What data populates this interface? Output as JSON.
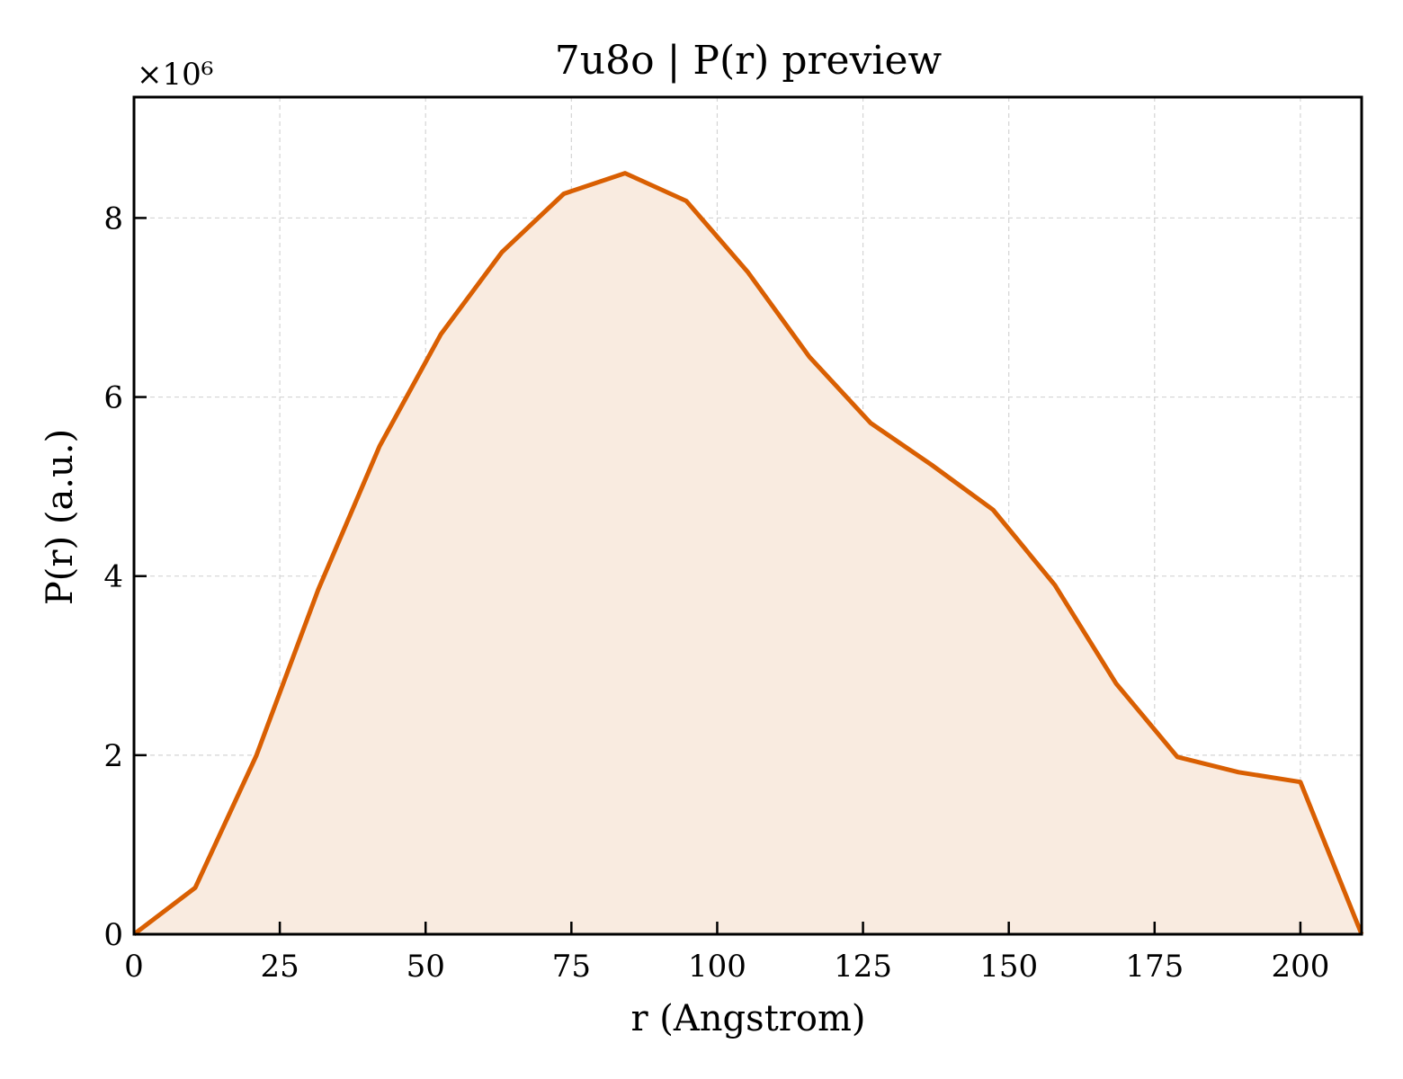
{
  "chart_data": {
    "type": "area",
    "title": "7u8o | P(r) preview",
    "xlabel": "r (Angstrom)",
    "ylabel": "P(r) (a.u.)",
    "y_multiplier_label": "×10⁶",
    "xlim": [
      0,
      210.5
    ],
    "ylim": [
      0,
      9.35
    ],
    "x_ticks": [
      0,
      25,
      50,
      75,
      100,
      125,
      150,
      175,
      200
    ],
    "y_ticks": [
      0,
      2,
      4,
      6,
      8
    ],
    "grid": true,
    "line_color": "#d95f02",
    "fill_color": "#f9ebe0",
    "x": [
      0,
      10.5,
      21.0,
      31.6,
      42.1,
      52.6,
      63.1,
      73.7,
      84.2,
      94.7,
      105.2,
      115.8,
      126.3,
      136.8,
      147.3,
      157.9,
      168.4,
      178.9,
      189.4,
      200.0,
      210.5
    ],
    "y": [
      0,
      0.52,
      2.0,
      3.85,
      5.45,
      6.7,
      7.62,
      8.27,
      8.5,
      8.19,
      7.4,
      6.45,
      5.71,
      5.24,
      4.74,
      3.9,
      2.8,
      1.98,
      1.81,
      1.7,
      0
    ]
  }
}
